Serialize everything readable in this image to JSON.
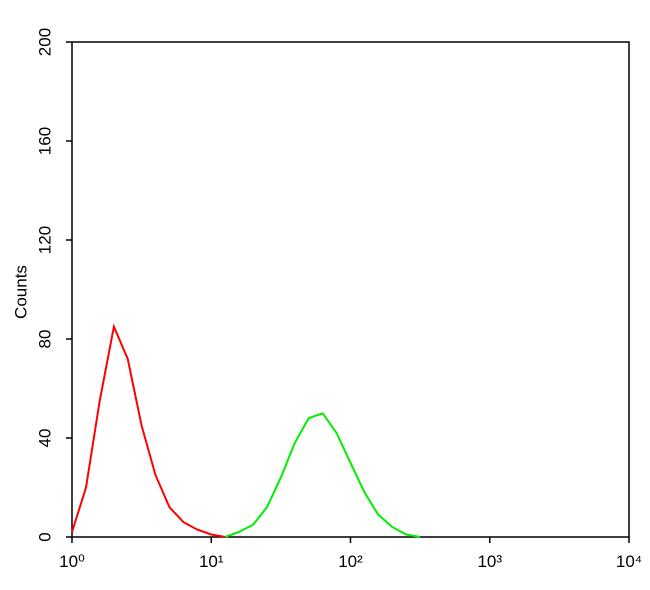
{
  "chart_data": {
    "type": "line",
    "y_label": "Counts",
    "x_scale": "log",
    "x": [
      1,
      1.26,
      1.58,
      2,
      2.51,
      3.16,
      3.98,
      5.01,
      6.31,
      7.94,
      10,
      12.6,
      15.8,
      20,
      25.1,
      31.6,
      39.8,
      50.1,
      63.1,
      79.4,
      100,
      126,
      158,
      200,
      251,
      316
    ],
    "series": [
      {
        "color": "#ff0000",
        "values": [
          2,
          20,
          55,
          85,
          72,
          45,
          25,
          12,
          6,
          3,
          1,
          0,
          null,
          null,
          null,
          null,
          null,
          null,
          null,
          null,
          null,
          null,
          null,
          null,
          null,
          null
        ]
      },
      {
        "color": "#00ee00",
        "values": [
          null,
          null,
          null,
          null,
          null,
          null,
          null,
          null,
          null,
          null,
          null,
          0,
          2,
          5,
          12,
          24,
          38,
          48,
          50,
          42,
          30,
          18,
          9,
          4,
          1,
          0
        ]
      }
    ],
    "xlim": [
      1,
      10000
    ],
    "xticks": [
      {
        "value": 1,
        "label": "10⁰"
      },
      {
        "value": 10,
        "label": "10¹"
      },
      {
        "value": 100,
        "label": "10²"
      },
      {
        "value": 1000,
        "label": "10³"
      },
      {
        "value": 10000,
        "label": "10⁴"
      }
    ],
    "ylim": [
      0,
      200
    ],
    "yticks": [
      0,
      40,
      80,
      120,
      160,
      200
    ]
  }
}
